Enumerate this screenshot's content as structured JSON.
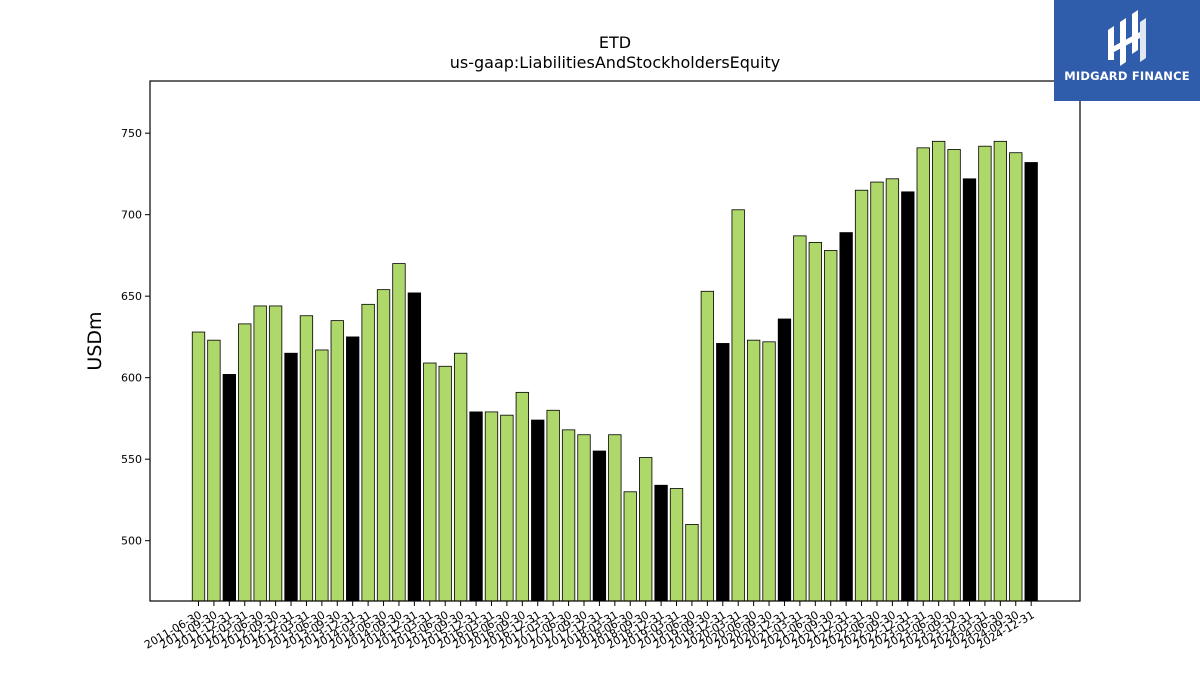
{
  "brand": {
    "name": "MIDGARD FINANCE",
    "background": "#2f5cab"
  },
  "chart_data": {
    "type": "bar",
    "title": "ETD",
    "subtitle": "us-gaap:LiabilitiesAndStockholdersEquity",
    "ylabel": "USDm",
    "xlabel": "",
    "ylim": [
      463,
      782
    ],
    "yticks": [
      500,
      550,
      600,
      650,
      700,
      750
    ],
    "grid": false,
    "colors": {
      "quarter": "#aed86a",
      "year_end": "#000000",
      "edge": "#000000"
    },
    "categories": [
      "2011-06-30",
      "2011-09-30",
      "2011-12-31",
      "2012-03-31",
      "2012-06-30",
      "2012-09-30",
      "2012-12-31",
      "2013-03-31",
      "2013-06-30",
      "2013-09-30",
      "2013-12-31",
      "2014-03-31",
      "2014-06-30",
      "2014-09-30",
      "2014-12-31",
      "2015-03-31",
      "2015-06-30",
      "2015-09-30",
      "2015-12-31",
      "2016-03-31",
      "2016-06-30",
      "2016-09-30",
      "2016-12-31",
      "2017-03-31",
      "2017-06-30",
      "2017-09-30",
      "2017-12-31",
      "2018-03-31",
      "2018-06-30",
      "2018-09-30",
      "2018-12-31",
      "2019-03-31",
      "2019-06-30",
      "2019-09-30",
      "2019-12-31",
      "2020-03-31",
      "2020-06-30",
      "2020-09-30",
      "2020-12-31",
      "2021-03-31",
      "2021-06-30",
      "2021-09-30",
      "2021-12-31",
      "2022-03-31",
      "2022-06-30",
      "2022-09-30",
      "2022-12-31",
      "2023-03-31",
      "2023-06-30",
      "2023-09-30",
      "2023-12-31",
      "2024-03-31",
      "2024-06-30",
      "2024-09-30",
      "2024-12-31"
    ],
    "values": [
      628,
      623,
      602,
      633,
      644,
      644,
      615,
      638,
      617,
      635,
      625,
      645,
      654,
      670,
      652,
      609,
      607,
      615,
      579,
      579,
      577,
      591,
      574,
      580,
      568,
      565,
      555,
      565,
      530,
      551,
      534,
      532,
      510,
      653,
      621,
      703,
      623,
      622,
      636,
      687,
      683,
      678,
      689,
      715,
      720,
      722,
      714,
      741,
      745,
      740,
      722,
      742,
      745,
      738,
      732
    ],
    "year_end": [
      false,
      false,
      true,
      false,
      false,
      false,
      true,
      false,
      false,
      false,
      true,
      false,
      false,
      false,
      true,
      false,
      false,
      false,
      true,
      false,
      false,
      false,
      true,
      false,
      false,
      false,
      true,
      false,
      false,
      false,
      true,
      false,
      false,
      false,
      true,
      false,
      false,
      false,
      true,
      false,
      false,
      false,
      true,
      false,
      false,
      false,
      true,
      false,
      false,
      false,
      true,
      false,
      false,
      false,
      true
    ]
  }
}
